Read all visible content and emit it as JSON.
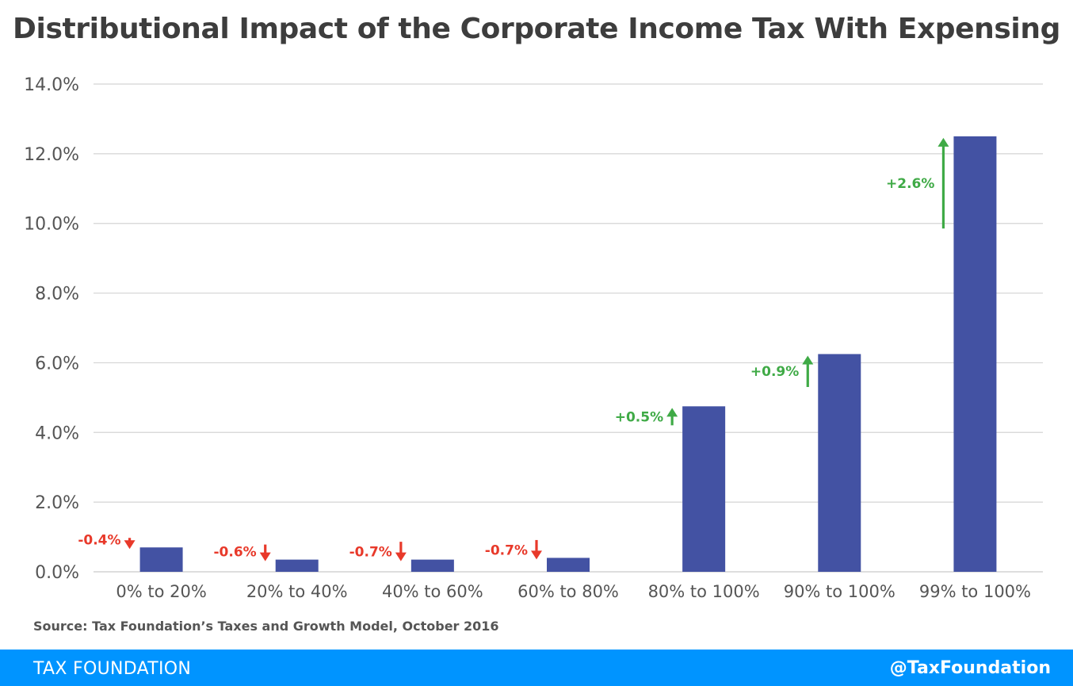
{
  "title": "Distributional Impact of the Corporate Income Tax With Expensing",
  "source": "Source: Tax Foundation’s Taxes and Growth Model, October 2016",
  "footer": {
    "brand": "TAX FOUNDATION",
    "handle": "@TaxFoundation"
  },
  "colors": {
    "bar": "#4352a3",
    "negative": "#e8392a",
    "positive": "#3faa46",
    "grid": "#d4d4d4",
    "footer": "#0094ff"
  },
  "chart_data": {
    "type": "bar",
    "categories": [
      "0% to 20%",
      "20% to 40%",
      "40% to 60%",
      "60% to 80%",
      "80% to 100%",
      "90% to 100%",
      "99% to 100%"
    ],
    "values": [
      0.7,
      0.35,
      0.35,
      0.4,
      4.75,
      6.25,
      12.5
    ],
    "change_labels": [
      "-0.4%",
      "-0.6%",
      "-0.7%",
      "-0.7%",
      "+0.5%",
      "+0.9%",
      "+2.6%"
    ],
    "changes": [
      -0.4,
      -0.6,
      -0.7,
      -0.7,
      0.5,
      0.9,
      2.6
    ],
    "ylim": [
      0,
      14
    ],
    "yticks": [
      0,
      2,
      4,
      6,
      8,
      10,
      12,
      14
    ],
    "ytick_labels": [
      "0.0%",
      "2.0%",
      "4.0%",
      "6.0%",
      "8.0%",
      "10.0%",
      "12.0%",
      "14.0%"
    ],
    "title": "Distributional Impact of the Corporate Income Tax With Expensing",
    "grid": true
  }
}
